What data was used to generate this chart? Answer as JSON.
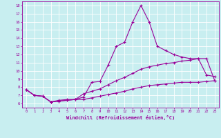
{
  "xlabel": "Windchill (Refroidissement éolien,°C)",
  "ylabel": "",
  "x_values": [
    0,
    1,
    2,
    3,
    4,
    5,
    6,
    7,
    8,
    9,
    10,
    11,
    12,
    13,
    14,
    15,
    16,
    17,
    18,
    19,
    20,
    21,
    22,
    23
  ],
  "line1_y": [
    7.7,
    7.0,
    6.9,
    6.2,
    6.3,
    6.4,
    6.5,
    6.8,
    8.6,
    8.7,
    10.7,
    13.0,
    13.5,
    16.0,
    18.0,
    16.0,
    13.0,
    12.5,
    12.0,
    11.7,
    11.5,
    11.5,
    9.5,
    9.3
  ],
  "line2_y": [
    7.7,
    7.0,
    6.9,
    6.2,
    6.4,
    6.5,
    6.5,
    7.2,
    7.5,
    7.8,
    8.3,
    8.8,
    9.2,
    9.7,
    10.2,
    10.5,
    10.7,
    10.9,
    11.0,
    11.2,
    11.3,
    11.5,
    11.5,
    8.8
  ],
  "line3_y": [
    7.7,
    7.0,
    6.9,
    6.2,
    6.3,
    6.4,
    6.5,
    6.5,
    6.7,
    6.9,
    7.1,
    7.3,
    7.5,
    7.8,
    8.0,
    8.2,
    8.3,
    8.4,
    8.5,
    8.6,
    8.6,
    8.6,
    8.7,
    8.8
  ],
  "line_color": "#990099",
  "bg_color": "#c8eef0",
  "grid_color": "#ffffff",
  "xlim": [
    -0.5,
    23.5
  ],
  "ylim": [
    5.5,
    18.5
  ],
  "xticks": [
    0,
    1,
    2,
    3,
    4,
    5,
    6,
    7,
    8,
    9,
    10,
    11,
    12,
    13,
    14,
    15,
    16,
    17,
    18,
    19,
    20,
    21,
    22,
    23
  ],
  "yticks": [
    6,
    7,
    8,
    9,
    10,
    11,
    12,
    13,
    14,
    15,
    16,
    17,
    18
  ]
}
